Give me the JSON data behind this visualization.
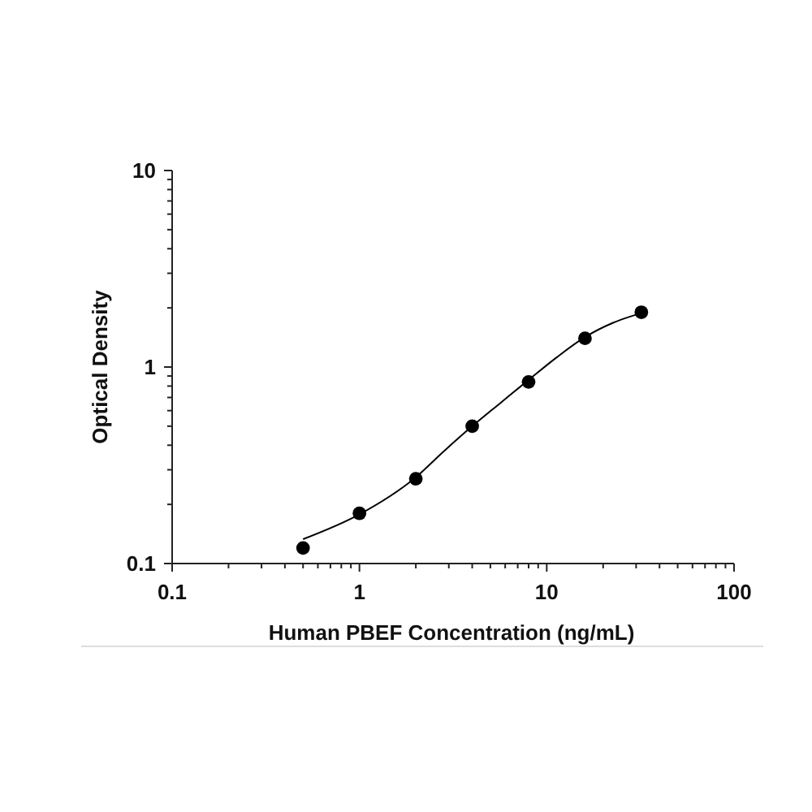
{
  "chart_data": {
    "type": "scatter",
    "xlabel": "Human PBEF Concentration (ng/mL)",
    "ylabel": "Optical Density",
    "log": "xy",
    "xlim": [
      0.1,
      100
    ],
    "ylim": [
      0.1,
      10
    ],
    "xticks": [
      0.1,
      {
        "value": 0.2,
        "label": null
      },
      {
        "value": 0.3,
        "label": null
      },
      {
        "value": 0.4,
        "label": null
      },
      {
        "value": 0.5,
        "label": null
      },
      {
        "value": 0.6,
        "label": null
      },
      {
        "value": 0.7,
        "label": null
      },
      {
        "value": 0.8,
        "label": null
      },
      {
        "value": 0.9,
        "label": null
      },
      1,
      {
        "value": 2,
        "label": null
      },
      {
        "value": 3,
        "label": null
      },
      {
        "value": 4,
        "label": null
      },
      {
        "value": 5,
        "label": null
      },
      {
        "value": 6,
        "label": null
      },
      {
        "value": 7,
        "label": null
      },
      {
        "value": 8,
        "label": null
      },
      {
        "value": 9,
        "label": null
      },
      10,
      {
        "value": 20,
        "label": null
      },
      {
        "value": 30,
        "label": null
      },
      {
        "value": 40,
        "label": null
      },
      {
        "value": 50,
        "label": null
      },
      {
        "value": 60,
        "label": null
      },
      {
        "value": 70,
        "label": null
      },
      {
        "value": 80,
        "label": null
      },
      {
        "value": 90,
        "label": null
      },
      100
    ],
    "yticks": [
      0.1,
      {
        "value": 0.2,
        "label": null
      },
      {
        "value": 0.3,
        "label": null
      },
      {
        "value": 0.4,
        "label": null
      },
      {
        "value": 0.5,
        "label": null
      },
      {
        "value": 0.6,
        "label": null
      },
      {
        "value": 0.7,
        "label": null
      },
      {
        "value": 0.8,
        "label": null
      },
      {
        "value": 0.9,
        "label": null
      },
      1,
      {
        "value": 2,
        "label": null
      },
      {
        "value": 3,
        "label": null
      },
      {
        "value": 4,
        "label": null
      },
      {
        "value": 5,
        "label": null
      },
      {
        "value": 6,
        "label": null
      },
      {
        "value": 7,
        "label": null
      },
      {
        "value": 8,
        "label": null
      },
      {
        "value": 9,
        "label": null
      },
      10
    ],
    "series": [
      {
        "color": "#000000",
        "marker": "circle",
        "x": [
          0.5,
          1,
          2,
          4,
          8,
          16,
          32
        ],
        "values": [
          0.12,
          0.18,
          0.27,
          0.5,
          0.84,
          1.4,
          1.9
        ]
      },
      {
        "type": "line",
        "color": "#000000",
        "marker": "none",
        "x": [
          0.5,
          1,
          2,
          2.8,
          4,
          5.7,
          8,
          11.3,
          16,
          22.6,
          32
        ],
        "values": [
          0.133,
          0.178,
          0.275,
          0.37,
          0.5,
          0.66,
          0.86,
          1.12,
          1.42,
          1.68,
          1.88
        ]
      }
    ]
  }
}
